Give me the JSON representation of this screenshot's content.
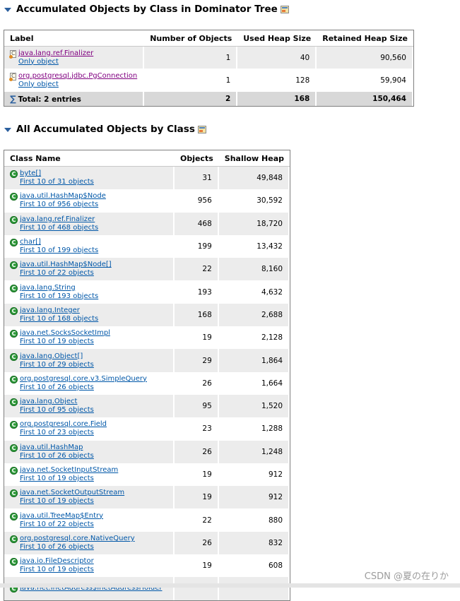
{
  "section1": {
    "title": "Accumulated Objects by Class in Dominator Tree",
    "columns": [
      "Label",
      "Number of Objects",
      "Used Heap Size",
      "Retained Heap Size"
    ],
    "rows": [
      {
        "label": "java.lang.ref.Finalizer",
        "link": "Only object",
        "objects": "1",
        "used": "40",
        "retained": "90,560"
      },
      {
        "label": "org.postgresql.jdbc.PgConnection",
        "link": "Only object",
        "objects": "1",
        "used": "128",
        "retained": "59,904"
      }
    ],
    "total": {
      "label": "Total: 2 entries",
      "objects": "2",
      "used": "168",
      "retained": "150,464"
    }
  },
  "section2": {
    "title": "All Accumulated Objects by Class",
    "columns": [
      "Class Name",
      "Objects",
      "Shallow Heap"
    ],
    "rows": [
      {
        "name": "byte[]",
        "link": "First 10 of 31 objects",
        "objects": "31",
        "shallow": "49,848"
      },
      {
        "name": "java.util.HashMap$Node",
        "link": "First 10 of 956 objects",
        "objects": "956",
        "shallow": "30,592"
      },
      {
        "name": "java.lang.ref.Finalizer",
        "link": "First 10 of 468 objects",
        "objects": "468",
        "shallow": "18,720"
      },
      {
        "name": "char[]",
        "link": "First 10 of 199 objects",
        "objects": "199",
        "shallow": "13,432"
      },
      {
        "name": "java.util.HashMap$Node[]",
        "link": "First 10 of 22 objects",
        "objects": "22",
        "shallow": "8,160"
      },
      {
        "name": "java.lang.String",
        "link": "First 10 of 193 objects",
        "objects": "193",
        "shallow": "4,632"
      },
      {
        "name": "java.lang.Integer",
        "link": "First 10 of 168 objects",
        "objects": "168",
        "shallow": "2,688"
      },
      {
        "name": "java.net.SocksSocketImpl",
        "link": "First 10 of 19 objects",
        "objects": "19",
        "shallow": "2,128"
      },
      {
        "name": "java.lang.Object[]",
        "link": "First 10 of 29 objects",
        "objects": "29",
        "shallow": "1,864"
      },
      {
        "name": "org.postgresql.core.v3.SimpleQuery",
        "link": "First 10 of 26 objects",
        "objects": "26",
        "shallow": "1,664"
      },
      {
        "name": "java.lang.Object",
        "link": "First 10 of 95 objects",
        "objects": "95",
        "shallow": "1,520"
      },
      {
        "name": "org.postgresql.core.Field",
        "link": "First 10 of 23 objects",
        "objects": "23",
        "shallow": "1,288"
      },
      {
        "name": "java.util.HashMap",
        "link": "First 10 of 26 objects",
        "objects": "26",
        "shallow": "1,248"
      },
      {
        "name": "java.net.SocketInputStream",
        "link": "First 10 of 19 objects",
        "objects": "19",
        "shallow": "912"
      },
      {
        "name": "java.net.SocketOutputStream",
        "link": "First 10 of 19 objects",
        "objects": "19",
        "shallow": "912"
      },
      {
        "name": "java.util.TreeMap$Entry",
        "link": "First 10 of 22 objects",
        "objects": "22",
        "shallow": "880"
      },
      {
        "name": "org.postgresql.core.NativeQuery",
        "link": "First 10 of 26 objects",
        "objects": "26",
        "shallow": "832"
      },
      {
        "name": "java.io.FileDescriptor",
        "link": "First 10 of 19 objects",
        "objects": "19",
        "shallow": "608"
      },
      {
        "name": "java.net.InetAddress$InetAddressHolder",
        "link": "",
        "objects": "",
        "shallow": ""
      }
    ]
  },
  "watermark": "CSDN @夏の在りか",
  "colors": {
    "link": "#0057a8",
    "visited_link": "#800080",
    "class_icon": "#2e9a3a",
    "header_triangle": "#2b5f9e"
  }
}
